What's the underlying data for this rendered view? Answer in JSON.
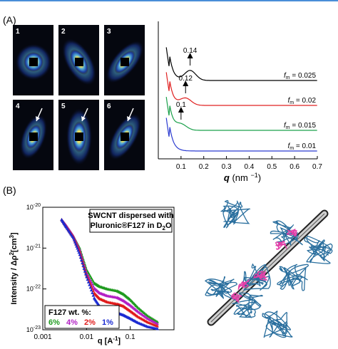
{
  "panel_a": {
    "label": "(A)",
    "images": [
      {
        "num": "1",
        "arrow": false
      },
      {
        "num": "2",
        "arrow": false
      },
      {
        "num": "3",
        "arrow": false
      },
      {
        "num": "4",
        "arrow": true
      },
      {
        "num": "5",
        "arrow": true
      },
      {
        "num": "6",
        "arrow": true
      }
    ]
  },
  "panel_b": {
    "label": "(B)",
    "box_line1": "SWCNT dispersed with",
    "box_line2": "Pluronic®F127 in D",
    "box_line2_sub": "2",
    "box_line2_end": "O",
    "legend_title": "F127 wt. %:",
    "legend_items": [
      {
        "text": "6%",
        "color": "#1f9a1f"
      },
      {
        "text": "4%",
        "color": "#b21fc4"
      },
      {
        "text": "2%",
        "color": "#e01b1b"
      },
      {
        "text": "1%",
        "color": "#1a2ad1"
      }
    ]
  },
  "chart_data": [
    {
      "type": "line",
      "xlabel": "q (nm",
      "xlabel_sup": "−1",
      "xlabel_end": ")",
      "xlim": [
        0,
        0.7
      ],
      "x_ticks": [
        "0.1",
        "0.2",
        "0.3",
        "0.4",
        "0.5",
        "0.6",
        "0.7"
      ],
      "series": [
        {
          "name": "f_m = 0.025",
          "label_f": "f",
          "label_sub": "m",
          "label_val": " = 0.025",
          "color": "#000000",
          "peak_q": 0.14,
          "peak_label": "0.14"
        },
        {
          "name": "f_m = 0.02",
          "label_f": "f",
          "label_sub": "m",
          "label_val": " = 0.02",
          "color": "#e02020",
          "peak_q": 0.12,
          "peak_label": "0.12"
        },
        {
          "name": "f_m = 0.015",
          "label_f": "f",
          "label_sub": "m",
          "label_val": " = 0.015",
          "color": "#1aa04a",
          "peak_q": 0.1,
          "peak_label": "0.1"
        },
        {
          "name": "f_m = 0.01",
          "label_f": "f",
          "label_sub": "m",
          "label_val": " = 0.01",
          "color": "#2a3ad0",
          "peak_q": null,
          "peak_label": ""
        }
      ]
    },
    {
      "type": "scatter",
      "xlabel": "q [A",
      "xlabel_sup": "-1",
      "xlabel_end": "]",
      "ylabel": "Intensity / Δρ",
      "ylabel_sup": "2",
      "ylabel_end": "[cm",
      "ylabel_sup2": "3",
      "ylabel_end2": "]",
      "x_scale": "log",
      "y_scale": "log",
      "xlim": [
        0.001,
        1
      ],
      "ylim": [
        1e-23,
        1e-20
      ],
      "x_ticks": [
        {
          "v": 0.001,
          "t": "0.001"
        },
        {
          "v": 0.01,
          "t": "0.01"
        },
        {
          "v": 0.1,
          "t": "0.1"
        }
      ],
      "y_ticks": [
        {
          "v": 1e-20,
          "b": "10",
          "e": "-20"
        },
        {
          "v": 1e-21,
          "b": "10",
          "e": "-21"
        },
        {
          "v": 1e-22,
          "b": "10",
          "e": "-22"
        },
        {
          "v": 1e-23,
          "b": "10",
          "e": "-23"
        }
      ],
      "series": [
        {
          "name": "6%",
          "color": "#1f9a1f",
          "x": [
            0.0027,
            0.0035,
            0.005,
            0.007,
            0.01,
            0.015,
            0.02,
            0.03,
            0.05,
            0.07,
            0.1,
            0.15,
            0.25,
            0.45
          ],
          "y": [
            5e-21,
            3.5e-21,
            2e-21,
            1e-21,
            3e-22,
            1.4e-22,
            1.15e-22,
            1e-22,
            9e-23,
            7.5e-23,
            5.5e-23,
            3.5e-23,
            2.2e-23,
            1.5e-23
          ]
        },
        {
          "name": "4%",
          "color": "#b21fc4",
          "x": [
            0.0027,
            0.0035,
            0.005,
            0.007,
            0.01,
            0.015,
            0.02,
            0.03,
            0.05,
            0.07,
            0.1,
            0.15,
            0.25,
            0.45
          ],
          "y": [
            5e-21,
            3.5e-21,
            2e-21,
            9e-22,
            2.5e-22,
            1.05e-22,
            8e-23,
            6.8e-23,
            6.2e-23,
            5.2e-23,
            4e-23,
            2.8e-23,
            1.9e-23,
            1.35e-23
          ]
        },
        {
          "name": "2%",
          "color": "#e01b1b",
          "x": [
            0.0027,
            0.0035,
            0.005,
            0.007,
            0.01,
            0.015,
            0.02,
            0.03,
            0.05,
            0.07,
            0.1,
            0.15,
            0.25,
            0.45
          ],
          "y": [
            5e-21,
            3.3e-21,
            1.9e-21,
            8e-22,
            2.2e-22,
            8e-23,
            5.8e-23,
            4.8e-23,
            4.3e-23,
            3.8e-23,
            2.9e-23,
            2.1e-23,
            1.55e-23,
            1.2e-23
          ]
        },
        {
          "name": "1%",
          "color": "#1a2ad1",
          "x": [
            0.0027,
            0.0035,
            0.005,
            0.007,
            0.01,
            0.015,
            0.02,
            0.03,
            0.05,
            0.07,
            0.1,
            0.15,
            0.25,
            0.45
          ],
          "y": [
            5e-21,
            3.2e-21,
            1.8e-21,
            7e-22,
            2e-22,
            6e-23,
            3.8e-23,
            3e-23,
            2.6e-23,
            2.3e-23,
            1.9e-23,
            1.5e-23,
            1.2e-23,
            1.05e-23
          ]
        }
      ]
    }
  ]
}
